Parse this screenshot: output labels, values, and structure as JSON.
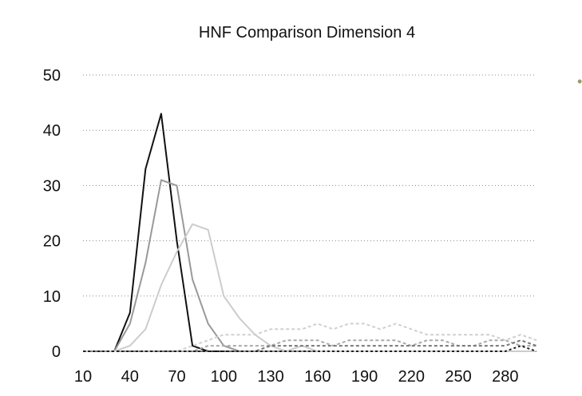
{
  "chart_data": {
    "type": "line",
    "title": "HNF Comparison Dimension 4",
    "xlabel": "",
    "ylabel": "",
    "x": [
      10,
      20,
      30,
      40,
      50,
      60,
      70,
      80,
      90,
      100,
      110,
      120,
      130,
      140,
      150,
      160,
      170,
      180,
      190,
      200,
      210,
      220,
      230,
      240,
      250,
      260,
      270,
      280,
      290,
      300
    ],
    "xticks": [
      10,
      40,
      70,
      100,
      130,
      160,
      190,
      220,
      250,
      280
    ],
    "yticks": [
      0,
      10,
      20,
      30,
      40,
      50
    ],
    "xlim": [
      10,
      300
    ],
    "ylim": [
      0,
      50
    ],
    "grid": "horizontal dotted",
    "legend": "none",
    "series": [
      {
        "color": "#111111",
        "dash": "",
        "values": [
          0,
          0,
          0,
          7,
          33,
          43,
          20,
          1,
          0,
          0,
          0,
          0,
          0,
          0,
          0,
          0,
          0,
          0,
          0,
          0,
          0,
          0,
          0,
          0,
          0,
          0,
          0,
          0,
          0,
          0
        ]
      },
      {
        "color": "#999999",
        "dash": "",
        "values": [
          0,
          0,
          0,
          5,
          16,
          31,
          30,
          13,
          5,
          1,
          0,
          0,
          0,
          0,
          0,
          0,
          0,
          0,
          0,
          0,
          0,
          0,
          0,
          0,
          0,
          0,
          0,
          0,
          0,
          0
        ]
      },
      {
        "color": "#cccccc",
        "dash": "",
        "values": [
          0,
          0,
          0,
          1,
          4,
          12,
          18,
          23,
          22,
          10,
          6,
          3,
          1,
          0,
          1,
          0,
          0,
          0,
          0,
          0,
          0,
          0,
          0,
          0,
          0,
          0,
          0,
          0,
          0,
          0
        ]
      },
      {
        "color": "#d0d0d0",
        "dash": "4,3",
        "values": [
          0,
          0,
          0,
          0,
          0,
          0,
          0,
          1,
          2,
          3,
          3,
          3,
          4,
          4,
          4,
          5,
          4,
          5,
          5,
          4,
          5,
          4,
          3,
          3,
          3,
          3,
          3,
          2,
          3,
          2
        ]
      },
      {
        "color": "#aaaaaa",
        "dash": "4,3",
        "values": [
          0,
          0,
          0,
          0,
          0,
          0,
          0,
          0,
          1,
          1,
          1,
          1,
          1,
          2,
          2,
          2,
          1,
          2,
          2,
          2,
          2,
          1,
          2,
          2,
          1,
          1,
          2,
          2,
          1,
          1
        ]
      },
      {
        "color": "#777777",
        "dash": "4,3",
        "values": [
          0,
          0,
          0,
          0,
          0,
          0,
          0,
          0,
          0,
          0,
          0,
          0,
          1,
          1,
          1,
          1,
          1,
          1,
          1,
          1,
          1,
          1,
          1,
          1,
          1,
          1,
          1,
          1,
          2,
          1
        ]
      },
      {
        "color": "#222222",
        "dash": "3,3",
        "values": [
          0,
          0,
          0,
          0,
          0,
          0,
          0,
          0,
          0,
          0,
          0,
          0,
          0,
          0,
          0,
          0,
          0,
          0,
          0,
          0,
          0,
          0,
          0,
          0,
          0,
          0,
          0,
          0,
          1,
          0
        ]
      }
    ]
  }
}
